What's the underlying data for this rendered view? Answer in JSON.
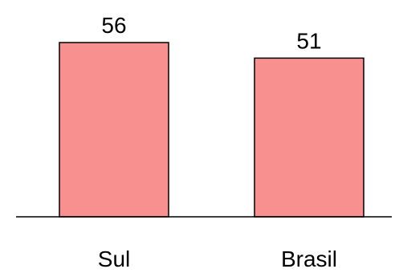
{
  "chart_data": {
    "type": "bar",
    "title": "",
    "xlabel": "",
    "ylabel": "",
    "categories": [
      "Sul",
      "Brasil"
    ],
    "values": [
      56,
      51
    ],
    "data_labels": [
      "56",
      "51"
    ],
    "ylim": [
      0,
      56
    ],
    "grid": false,
    "legend": "none"
  },
  "colors": {
    "bar_fill": "#f99090",
    "bar_edge": "#000000",
    "axis": "#000000",
    "background": "#ffffff"
  }
}
